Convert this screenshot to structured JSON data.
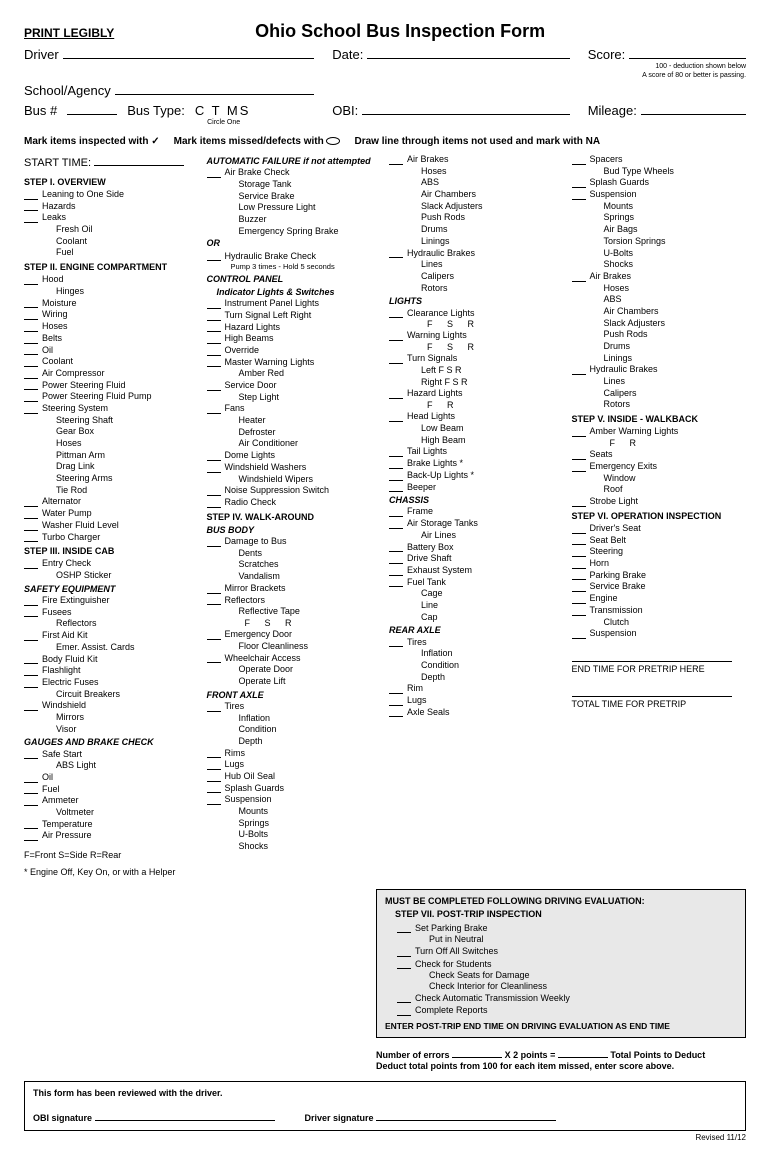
{
  "header": {
    "print_legibly": "PRINT LEGIBLY",
    "title": "Ohio School Bus Inspection Form",
    "driver_label": "Driver",
    "date_label": "Date:",
    "score_label": "Score:",
    "score_note1": "100 - deduction shown below",
    "score_note2": "A score of 80 or better is passing.",
    "school_label": "School/Agency",
    "bus_num_label": "Bus #",
    "bus_type_label": "Bus Type:",
    "bus_types": "C   T   MS",
    "circle_one": "Circle One",
    "obi_label": "OBI:",
    "mileage_label": "Mileage:"
  },
  "instructions": {
    "mark_inspected": "Mark items inspected with ✓",
    "mark_missed": "Mark items missed/defects with",
    "draw_line": "Draw line through items not used and mark with NA"
  },
  "start_time_label": "START TIME:",
  "col1": {
    "step1_hdr": "STEP I.  OVERVIEW",
    "step1": [
      "Leaning to One Side",
      "Hazards",
      "Leaks"
    ],
    "step1_sub": [
      "Fresh Oil",
      "Coolant",
      "Fuel"
    ],
    "step2_hdr": "STEP II.  ENGINE COMPARTMENT",
    "step2a": [
      "Hood"
    ],
    "step2a_sub": [
      "Hinges"
    ],
    "step2b": [
      "Moisture",
      "Wiring",
      "Hoses",
      "Belts",
      "Oil",
      "Coolant",
      "Air Compressor",
      "Power Steering Fluid",
      "Power Steering Fluid Pump",
      "Steering System"
    ],
    "step2b_sub": [
      "Steering Shaft",
      "Gear Box",
      "Hoses",
      "Pittman Arm",
      "Drag Link",
      "Steering Arms",
      "Tie Rod"
    ],
    "step2c": [
      "Alternator",
      "Water Pump",
      "Washer Fluid Level",
      "Turbo Charger"
    ],
    "step3_hdr": "STEP III.  INSIDE CAB",
    "step3a": [
      "Entry Check"
    ],
    "step3a_sub": [
      "OSHP Sticker"
    ],
    "safety_hdr": "SAFETY EQUIPMENT",
    "safety": [
      "Fire Extinguisher",
      "Fusees"
    ],
    "safety_sub1": [
      "Reflectors"
    ],
    "safety2": [
      "First Aid Kit"
    ],
    "safety_sub2": [
      "Emer. Assist. Cards"
    ],
    "safety3": [
      "Body Fluid Kit",
      "Flashlight",
      "Electric Fuses"
    ],
    "safety_sub3": [
      "Circuit Breakers"
    ],
    "safety4": [
      "Windshield"
    ],
    "safety_sub4": [
      "Mirrors",
      "Visor"
    ],
    "gauges_hdr": "GAUGES AND BRAKE CHECK",
    "gauges": [
      "Safe Start"
    ],
    "gauges_sub": [
      "ABS Light"
    ],
    "gauges2": [
      "Oil",
      "Fuel",
      "Ammeter"
    ],
    "gauges_sub2": [
      "Voltmeter"
    ],
    "gauges3": [
      "Temperature",
      "Air Pressure"
    ],
    "legend": "F=Front   S=Side   R=Rear",
    "footnote": "* Engine Off, Key On, or with a Helper"
  },
  "col2": {
    "auto_fail_hdr": "AUTOMATIC FAILURE if not attempted",
    "auto_fail": [
      "Air Brake Check"
    ],
    "auto_fail_sub": [
      "Storage Tank",
      "Service Brake",
      "Low Pressure Light",
      "Buzzer",
      "Emergency Spring Brake"
    ],
    "or": "OR",
    "hydraulic": [
      "Hydraulic Brake Check"
    ],
    "hydraulic_note": "Pump 3 times - Hold 5 seconds",
    "control_hdr": "CONTROL PANEL",
    "indicator_hdr": "Indicator Lights & Switches",
    "control": [
      "Instrument Panel Lights"
    ],
    "turn_signal": "Turn Signal      Left      Right",
    "control2": [
      "Hazard Lights",
      "High Beams",
      "Override",
      "Master Warning Lights"
    ],
    "amber_red": "Amber      Red",
    "control3": [
      "Service Door"
    ],
    "step_light": [
      "Step Light"
    ],
    "control4": [
      "Fans"
    ],
    "fans_sub": [
      "Heater",
      "Defroster",
      "Air Conditioner"
    ],
    "control5": [
      "Dome Lights",
      "Windshield Washers"
    ],
    "wipers_sub": [
      "Windshield Wipers"
    ],
    "control6": [
      "Noise Suppression Switch",
      "Radio Check"
    ],
    "step4_hdr": "STEP IV.  WALK-AROUND",
    "busbody_hdr": "BUS BODY",
    "busbody": [
      "Damage to Bus"
    ],
    "busbody_sub": [
      "Dents",
      "Scratches",
      "Vandalism"
    ],
    "busbody2": [
      "Mirror Brackets",
      "Reflectors"
    ],
    "reflective": [
      "Reflective Tape"
    ],
    "fsr": "F      S      R",
    "busbody3": [
      "Emergency Door"
    ],
    "floor": [
      "Floor Cleanliness"
    ],
    "busbody4": [
      "Wheelchair Access"
    ],
    "wc_sub": [
      "Operate Door",
      "Operate Lift"
    ],
    "frontaxle_hdr": "FRONT AXLE",
    "frontaxle": [
      "Tires"
    ],
    "tires_sub": [
      "Inflation",
      "Condition",
      "Depth"
    ],
    "frontaxle2": [
      "Rims",
      "Lugs",
      "Hub Oil Seal",
      "Splash Guards",
      "Suspension"
    ],
    "susp_sub": [
      "Mounts",
      "Springs",
      "U-Bolts",
      "Shocks"
    ]
  },
  "col3": {
    "airbrakes": [
      "Air Brakes"
    ],
    "airbrakes_sub": [
      "Hoses",
      "ABS",
      "Air Chambers",
      "Slack Adjusters",
      "Push Rods",
      "Drums",
      "Linings"
    ],
    "hydraulic": [
      "Hydraulic Brakes"
    ],
    "hydraulic_sub": [
      "Lines",
      "Calipers",
      "Rotors"
    ],
    "lights_hdr": "LIGHTS",
    "clearance": [
      "Clearance Lights"
    ],
    "fsr": "F      S      R",
    "warning": [
      "Warning Lights"
    ],
    "fsr2": "F      S      R",
    "turn": [
      "Turn Signals"
    ],
    "left_fsr": "Left     F      S      R",
    "right_fsr": "Right   F      S      R",
    "hazard": [
      "Hazard Lights"
    ],
    "fr": "F      R",
    "head": [
      "Head Lights"
    ],
    "head_sub": [
      "Low Beam",
      "High Beam"
    ],
    "lights2": [
      "Tail Lights",
      "Brake Lights *",
      "Back-Up Lights *",
      "Beeper"
    ],
    "chassis_hdr": "CHASSIS",
    "chassis": [
      "Frame",
      "Air Storage Tanks"
    ],
    "chassis_sub": [
      "Air Lines"
    ],
    "chassis2": [
      "Battery Box",
      "Drive Shaft",
      "Exhaust System",
      "Fuel Tank"
    ],
    "fuel_sub": [
      "Cage",
      "Line",
      "Cap"
    ],
    "rearaxle_hdr": "REAR AXLE",
    "rearaxle": [
      "Tires"
    ],
    "rearaxle_sub": [
      "Inflation",
      "Condition",
      "Depth"
    ],
    "rearaxle2": [
      "Rim",
      "Lugs",
      "Axle Seals"
    ]
  },
  "col4": {
    "top": [
      "Spacers"
    ],
    "top_sub": [
      "Bud Type Wheels"
    ],
    "top2": [
      "Splash Guards",
      "Suspension"
    ],
    "susp_sub": [
      "Mounts",
      "Springs",
      "Air Bags",
      "Torsion Springs",
      "U-Bolts",
      "Shocks"
    ],
    "airbrakes": [
      "Air Brakes"
    ],
    "airbrakes_sub": [
      "Hoses",
      "ABS",
      "Air Chambers",
      "Slack Adjusters",
      "Push Rods",
      "Drums",
      "Linings"
    ],
    "hydraulic": [
      "Hydraulic Brakes"
    ],
    "hydraulic_sub": [
      "Lines",
      "Calipers",
      "Rotors"
    ],
    "step5_hdr": "STEP V.  INSIDE - WALKBACK",
    "amber": [
      "Amber Warning Lights"
    ],
    "fr": "F      R",
    "step5a": [
      "Seats",
      "Emergency Exits"
    ],
    "exits_sub": [
      "Window",
      "Roof"
    ],
    "step5b": [
      "Strobe Light"
    ],
    "step6_hdr": "STEP VI.  OPERATION INSPECTION",
    "step6": [
      "Driver's Seat",
      "Seat Belt",
      "Steering",
      "Horn",
      "Parking Brake",
      "Service Brake",
      "Engine",
      "Transmission"
    ],
    "clutch_sub": [
      "Clutch"
    ],
    "step6b": [
      "Suspension"
    ],
    "end_time_label": "END TIME FOR PRETRIP HERE",
    "total_time_label": "TOTAL TIME FOR PRETRIP"
  },
  "posttrip": {
    "must": "MUST BE COMPLETED FOLLOWING DRIVING EVALUATION:",
    "hdr": "STEP VII. POST-TRIP INSPECTION",
    "items": [
      "Set Parking Brake"
    ],
    "sub1": [
      "Put in Neutral"
    ],
    "items2": [
      "Turn Off All Switches",
      "Check for Students"
    ],
    "sub2": [
      "Check Seats for Damage",
      "Check Interior for Cleanliness"
    ],
    "items3": [
      "Check Automatic Transmission Weekly",
      "Complete Reports"
    ],
    "footer": "ENTER POST-TRIP END TIME ON DRIVING EVALUATION AS END TIME"
  },
  "scoring": {
    "line1a": "Number of errors",
    "line1b": "X 2 points =",
    "line1c": "Total Points to Deduct",
    "line2": "Deduct total points from 100 for each item missed, enter score above."
  },
  "sig": {
    "reviewed": "This form has been reviewed with the driver.",
    "obi": "OBI signature",
    "driver": "Driver signature"
  },
  "revised": "Revised 11/12"
}
